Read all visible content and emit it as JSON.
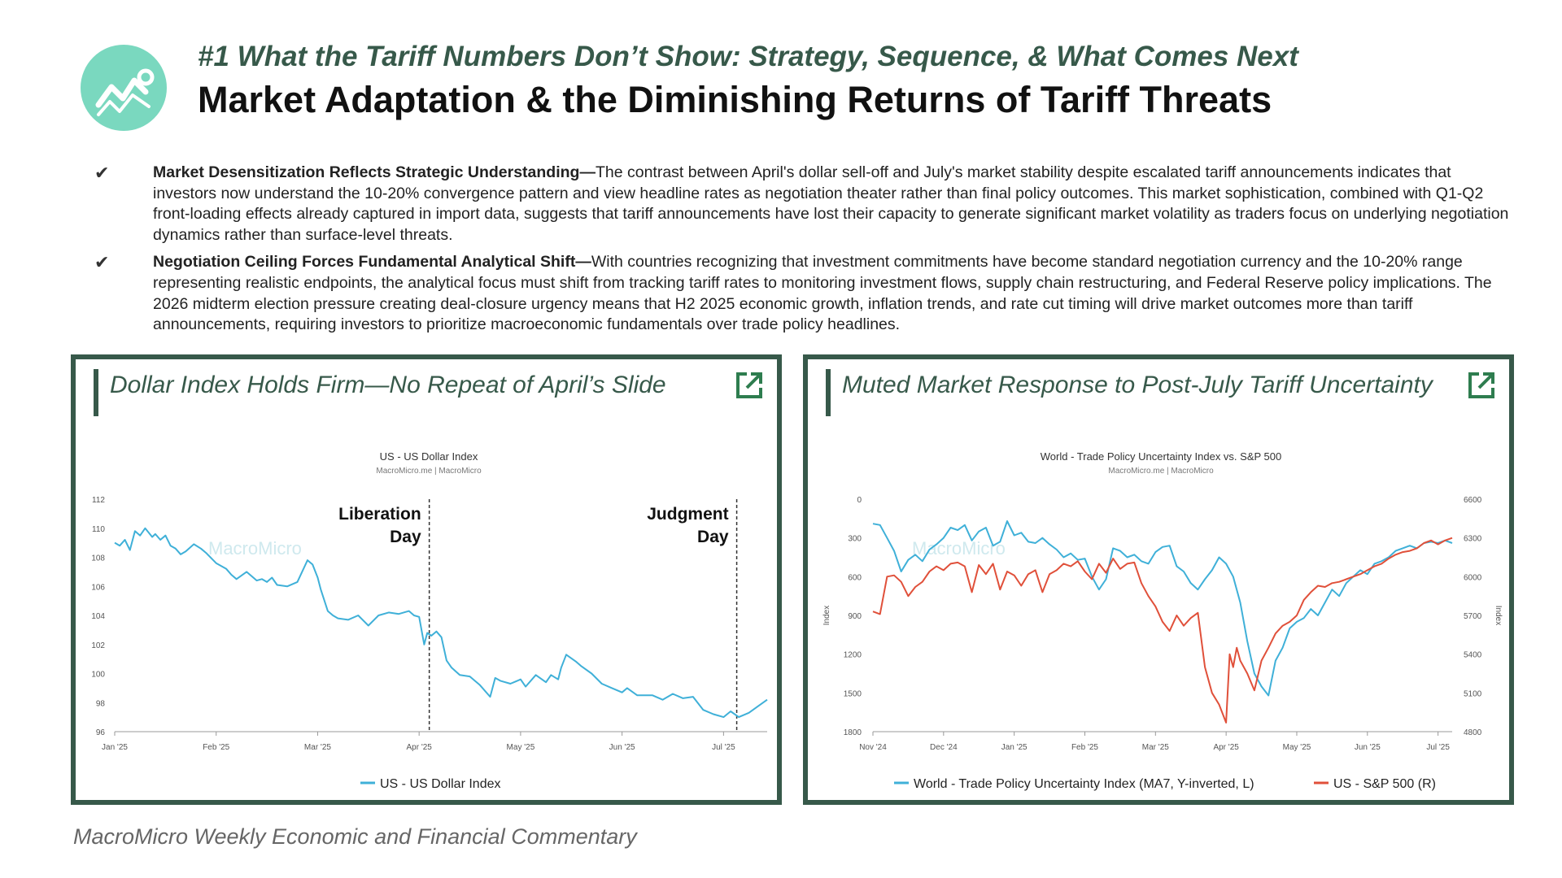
{
  "header": {
    "kicker": "#1 What the Tariff Numbers Don’t Show: Strategy, Sequence, & What Comes Next",
    "title": "Market Adaptation & the Diminishing Returns of Tariff Threats"
  },
  "bullets": [
    {
      "heading": "Market Desensitization Reflects Strategic Understanding—",
      "text": "The contrast between April's dollar sell-off and July's market stability despite escalated tariff announcements indicates that investors now understand the 10-20% convergence pattern and view headline rates as negotiation theater rather than final policy outcomes. This market sophistication, combined with Q1-Q2 front-loading effects already captured in import data, suggests that tariff announcements have lost their capacity to generate significant market volatility as traders focus on underlying negotiation dynamics rather than surface-level threats."
    },
    {
      "heading": "Negotiation Ceiling Forces Fundamental Analytical Shift—",
      "text": "With countries recognizing that investment commitments have become standard negotiation currency and the 10-20% range representing realistic endpoints, the analytical focus must shift from tracking tariff rates to monitoring investment flows, supply chain restructuring, and Federal Reserve policy implications. The 2026 midterm election pressure creating deal-closure urgency means that H2 2025 economic growth, inflation trends, and rate cut timing will drive market outcomes more than tariff announcements, requiring investors to prioritize macroeconomic fundamentals over trade policy headlines."
    }
  ],
  "panels": {
    "left_title": "Dollar Index Holds Firm—No Repeat of April’s Slide",
    "right_title": "Muted Market Response to Post-July Tariff Uncertainty"
  },
  "footer": "MacroMicro Weekly Economic and Financial Commentary",
  "colors": {
    "accent": "#37594a",
    "logo": "#7ad8bf",
    "blue": "#3fb0d8",
    "red": "#e0503a"
  },
  "icons": {
    "logo": "chart-trend-icon",
    "external_link": "external-link-icon",
    "check": "check-icon"
  },
  "chart_data": [
    {
      "type": "line",
      "title": "US - US Dollar Index",
      "subtitle": "MacroMicro.me | MacroMicro",
      "watermark": "MacroMicro",
      "x_ticks": [
        "Jan '25",
        "Feb '25",
        "Mar '25",
        "Apr '25",
        "May '25",
        "Jun '25",
        "Jul '25"
      ],
      "ylim": [
        96,
        112
      ],
      "y_ticks": [
        96,
        98,
        100,
        102,
        104,
        106,
        108,
        110,
        112
      ],
      "annotations": [
        {
          "label_line1": "Liberation",
          "label_line2": "Day",
          "x": 3.1
        },
        {
          "label_line1": "Judgment",
          "label_line2": "Day",
          "x": 6.13
        }
      ],
      "legend_position": "bottom",
      "series": [
        {
          "name": "US - US Dollar Index",
          "color": "#3fb0d8",
          "x": [
            0,
            0.05,
            0.1,
            0.15,
            0.2,
            0.25,
            0.3,
            0.37,
            0.4,
            0.45,
            0.5,
            0.55,
            0.6,
            0.65,
            0.7,
            0.78,
            0.85,
            0.9,
            1.0,
            1.1,
            1.15,
            1.2,
            1.3,
            1.4,
            1.45,
            1.5,
            1.55,
            1.6,
            1.7,
            1.8,
            1.9,
            1.95,
            2.0,
            2.03,
            2.1,
            2.15,
            2.2,
            2.3,
            2.4,
            2.5,
            2.6,
            2.7,
            2.8,
            2.9,
            2.95,
            3.0,
            3.05,
            3.08,
            3.12,
            3.17,
            3.22,
            3.27,
            3.32,
            3.4,
            3.5,
            3.6,
            3.7,
            3.75,
            3.8,
            3.9,
            4.0,
            4.05,
            4.15,
            4.25,
            4.3,
            4.37,
            4.4,
            4.45,
            4.55,
            4.6,
            4.7,
            4.8,
            4.9,
            5.0,
            5.05,
            5.15,
            5.3,
            5.4,
            5.5,
            5.6,
            5.7,
            5.8,
            5.9,
            6.0,
            6.07,
            6.15,
            6.25,
            6.35,
            6.43
          ],
          "y": [
            109,
            108.8,
            109.2,
            108.5,
            109.8,
            109.5,
            110,
            109.4,
            109.6,
            109.2,
            109.5,
            108.8,
            108.6,
            108.2,
            108.4,
            108.9,
            108.6,
            108.3,
            107.6,
            107.2,
            106.8,
            106.5,
            107.0,
            106.4,
            106.5,
            106.3,
            106.6,
            106.1,
            106.0,
            106.3,
            107.8,
            107.5,
            106.6,
            105.8,
            104.3,
            104.0,
            103.8,
            103.7,
            104.0,
            103.3,
            104.0,
            104.2,
            104.1,
            104.3,
            104.0,
            103.9,
            102.0,
            102.8,
            102.6,
            102.9,
            102.5,
            100.9,
            100.4,
            99.9,
            99.8,
            99.2,
            98.4,
            99.7,
            99.5,
            99.3,
            99.6,
            99.1,
            99.9,
            99.4,
            99.9,
            99.6,
            100.4,
            101.3,
            100.8,
            100.5,
            100.0,
            99.3,
            99.0,
            98.7,
            99.0,
            98.5,
            98.5,
            98.2,
            98.6,
            98.3,
            98.4,
            97.5,
            97.2,
            97.0,
            97.4,
            97.0,
            97.3,
            97.8,
            98.2
          ]
        }
      ]
    },
    {
      "type": "line",
      "title": "World - Trade Policy Uncertainty Index vs. S&P 500",
      "subtitle": "MacroMicro.me | MacroMicro",
      "watermark": "MacroMicro",
      "x_ticks": [
        "Nov '24",
        "Dec '24",
        "Jan '25",
        "Feb '25",
        "Mar '25",
        "Apr '25",
        "May '25",
        "Jun '25",
        "Jul '25"
      ],
      "left_axis": {
        "label": "Index",
        "ticks": [
          0,
          300,
          600,
          900,
          1200,
          1500,
          1800
        ],
        "inverted": true,
        "ylim": [
          0,
          1800
        ]
      },
      "right_axis": {
        "label": "Index",
        "ticks": [
          4800,
          5100,
          5400,
          5700,
          6000,
          6300,
          6600
        ],
        "ylim": [
          4800,
          6600
        ]
      },
      "legend_position": "bottom",
      "series": [
        {
          "name": "World - Trade Policy Uncertainty Index (MA7, Y-inverted, L)",
          "color": "#3fb0d8",
          "axis": "left",
          "x": [
            0,
            0.1,
            0.2,
            0.3,
            0.4,
            0.5,
            0.6,
            0.7,
            0.8,
            0.9,
            1.0,
            1.1,
            1.2,
            1.3,
            1.4,
            1.5,
            1.6,
            1.7,
            1.8,
            1.9,
            2.0,
            2.1,
            2.2,
            2.3,
            2.4,
            2.5,
            2.6,
            2.7,
            2.8,
            2.9,
            3.0,
            3.1,
            3.2,
            3.3,
            3.4,
            3.5,
            3.6,
            3.7,
            3.8,
            3.9,
            4.0,
            4.1,
            4.2,
            4.3,
            4.4,
            4.5,
            4.6,
            4.7,
            4.8,
            4.9,
            5.0,
            5.1,
            5.2,
            5.3,
            5.4,
            5.5,
            5.6,
            5.7,
            5.8,
            5.9,
            6.0,
            6.1,
            6.2,
            6.3,
            6.4,
            6.5,
            6.6,
            6.7,
            6.8,
            6.9,
            7.0,
            7.1,
            7.2,
            7.3,
            7.4,
            7.5,
            7.6,
            7.7,
            7.8,
            7.9,
            8.0,
            8.1,
            8.2
          ],
          "y": [
            190,
            200,
            300,
            400,
            560,
            470,
            430,
            480,
            390,
            350,
            300,
            220,
            240,
            200,
            320,
            250,
            220,
            360,
            330,
            170,
            280,
            260,
            330,
            340,
            300,
            350,
            390,
            450,
            420,
            470,
            460,
            600,
            700,
            620,
            380,
            400,
            450,
            430,
            480,
            500,
            410,
            370,
            360,
            520,
            560,
            650,
            700,
            620,
            550,
            450,
            500,
            600,
            800,
            1100,
            1350,
            1450,
            1520,
            1250,
            1150,
            1000,
            950,
            920,
            850,
            900,
            800,
            700,
            750,
            650,
            600,
            550,
            580,
            500,
            480,
            450,
            400,
            380,
            360,
            380,
            340,
            330,
            340,
            320,
            340
          ]
        },
        {
          "name": "US - S&P 500 (R)",
          "color": "#e0503a",
          "axis": "right",
          "x": [
            0,
            0.1,
            0.2,
            0.3,
            0.4,
            0.5,
            0.6,
            0.7,
            0.8,
            0.9,
            1.0,
            1.1,
            1.2,
            1.3,
            1.4,
            1.5,
            1.6,
            1.7,
            1.8,
            1.9,
            2.0,
            2.1,
            2.2,
            2.3,
            2.4,
            2.5,
            2.6,
            2.7,
            2.8,
            2.9,
            3.0,
            3.1,
            3.2,
            3.3,
            3.4,
            3.5,
            3.6,
            3.7,
            3.8,
            3.9,
            4.0,
            4.1,
            4.2,
            4.3,
            4.4,
            4.5,
            4.6,
            4.7,
            4.8,
            4.9,
            5.0,
            5.05,
            5.1,
            5.15,
            5.2,
            5.3,
            5.4,
            5.5,
            5.6,
            5.7,
            5.8,
            5.9,
            6.0,
            6.1,
            6.2,
            6.3,
            6.4,
            6.5,
            6.6,
            6.7,
            6.8,
            6.9,
            7.0,
            7.1,
            7.2,
            7.3,
            7.4,
            7.5,
            7.6,
            7.7,
            7.8,
            7.9,
            8.0,
            8.1,
            8.2
          ],
          "y": [
            5730,
            5710,
            6000,
            6010,
            5960,
            5850,
            5920,
            5960,
            6040,
            6080,
            6050,
            6100,
            6110,
            6080,
            5880,
            6090,
            6020,
            6100,
            5900,
            6040,
            6010,
            5930,
            6020,
            6050,
            5880,
            6020,
            6050,
            6100,
            6080,
            6120,
            6040,
            5980,
            6100,
            6030,
            6140,
            6060,
            6100,
            6110,
            5950,
            5850,
            5770,
            5650,
            5580,
            5700,
            5620,
            5680,
            5720,
            5300,
            5100,
            5010,
            4870,
            5400,
            5300,
            5450,
            5350,
            5250,
            5120,
            5350,
            5450,
            5560,
            5620,
            5650,
            5700,
            5820,
            5880,
            5930,
            5920,
            5950,
            5960,
            5980,
            6000,
            6020,
            6050,
            6080,
            6100,
            6140,
            6170,
            6190,
            6200,
            6220,
            6260,
            6280,
            6250,
            6280,
            6300
          ]
        }
      ]
    }
  ]
}
